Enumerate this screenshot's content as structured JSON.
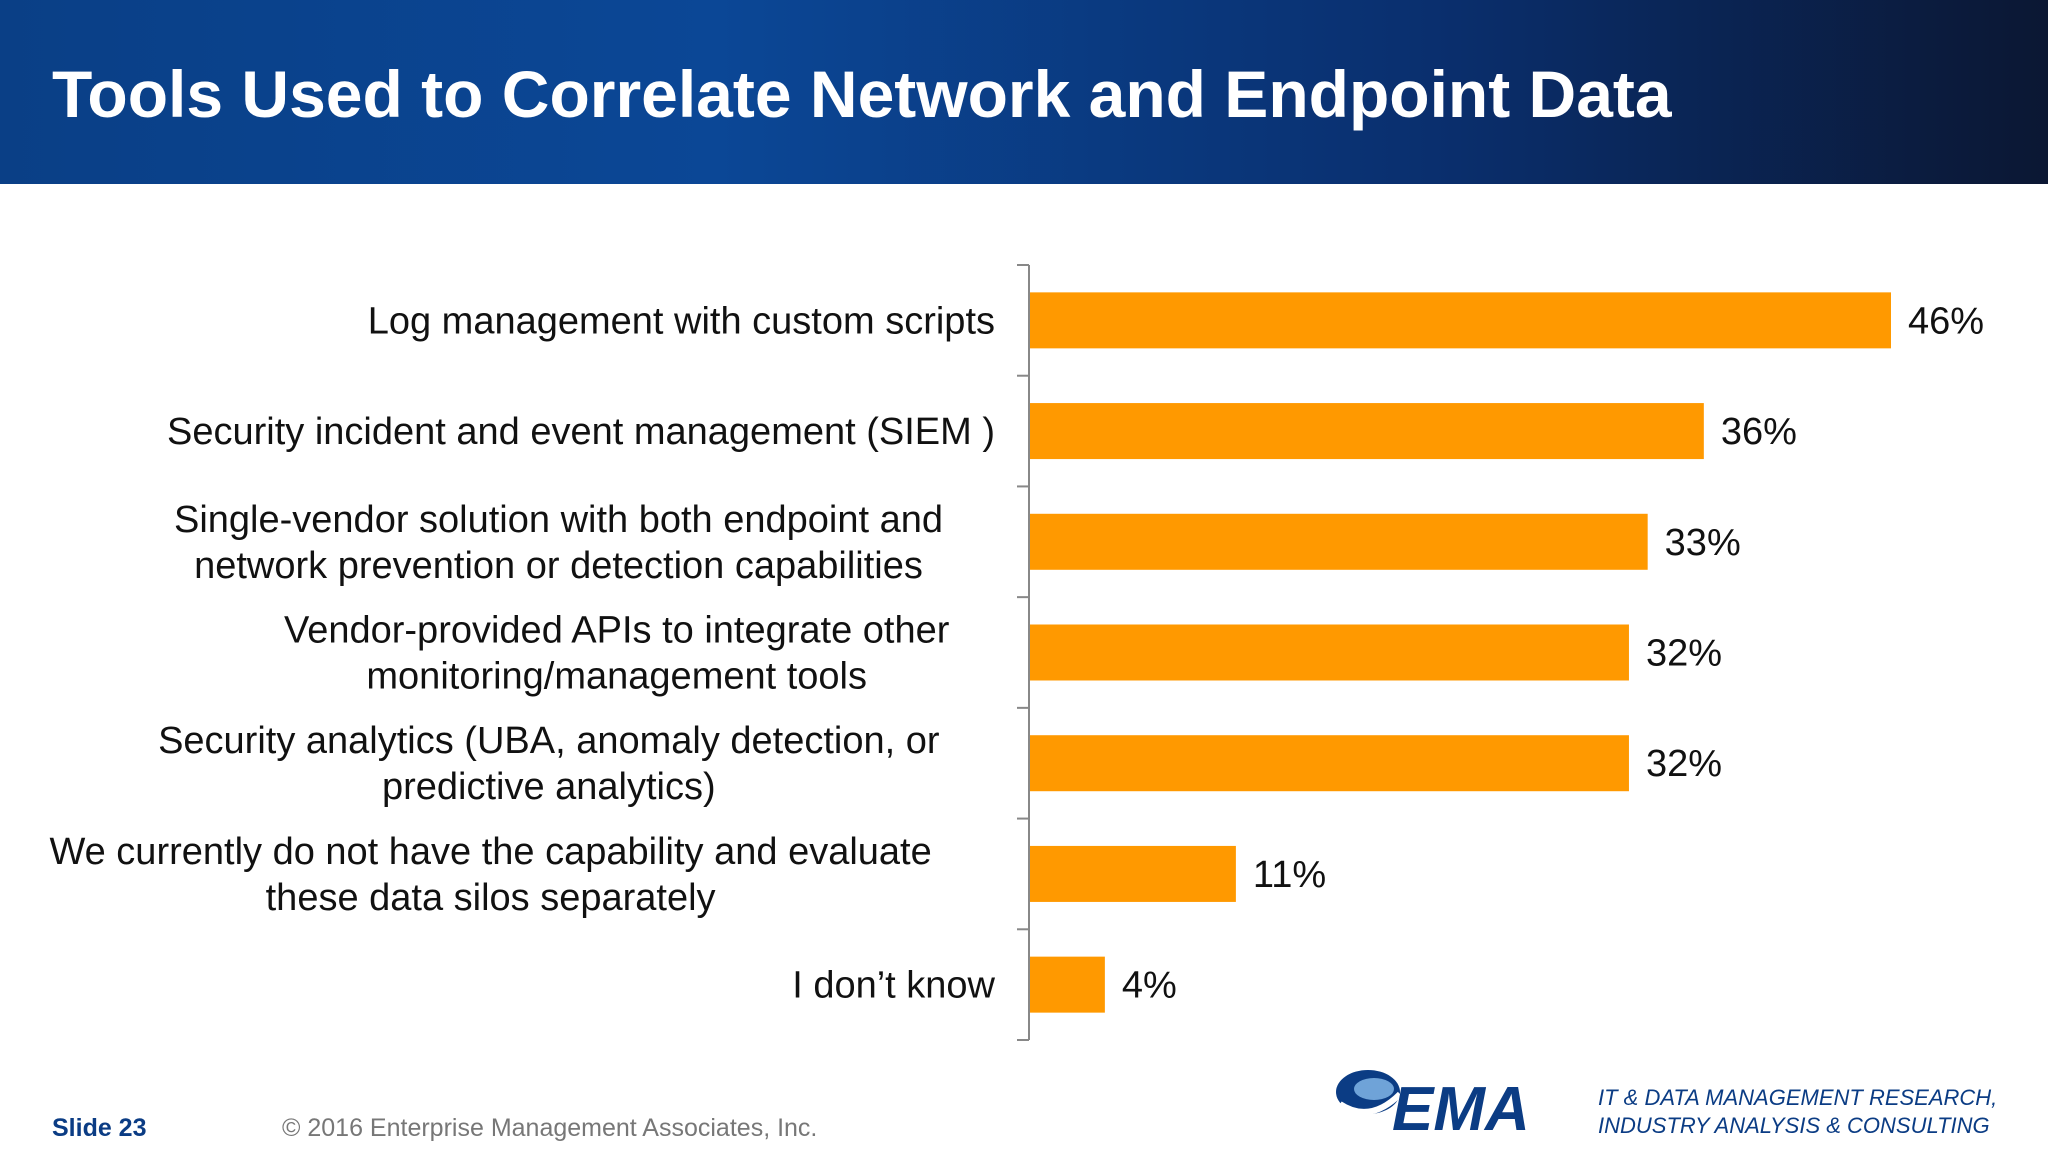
{
  "header": {
    "title": "Tools Used to Correlate Network and Endpoint Data"
  },
  "chart_data": {
    "type": "bar",
    "orientation": "horizontal",
    "title": "Tools Used to Correlate Network and Endpoint Data",
    "xlabel": "",
    "ylabel": "",
    "unit": "%",
    "categories": [
      [
        "Log management with custom scripts"
      ],
      [
        "Security incident and event management (SIEM )"
      ],
      [
        "Single-vendor solution with both endpoint and",
        "network prevention or detection capabilities"
      ],
      [
        "Vendor-provided APIs to integrate other",
        "monitoring/management tools"
      ],
      [
        "Security analytics (UBA, anomaly detection, or",
        "predictive analytics)"
      ],
      [
        "We currently do not have the capability and evaluate",
        "these data silos separately"
      ],
      [
        "I don’t know"
      ]
    ],
    "values": [
      46,
      36,
      33,
      32,
      32,
      11,
      4
    ],
    "value_labels": [
      "46%",
      "36%",
      "33%",
      "32%",
      "32%",
      "11%",
      "4%"
    ],
    "xlim": [
      0,
      46
    ],
    "bar_color": "#ff9900",
    "grid": false,
    "legend": "none"
  },
  "footer": {
    "slide": "Slide 23",
    "copyright": "© 2016 Enterprise Management Associates, Inc.",
    "logo_text": "EMA",
    "tagline_line1": "IT & DATA MANAGEMENT RESEARCH,",
    "tagline_line2": "INDUSTRY ANALYSIS & CONSULTING"
  },
  "colors": {
    "header_blue": "#0b4796",
    "brand_blue": "#0b3c84",
    "bar": "#ff9900"
  }
}
